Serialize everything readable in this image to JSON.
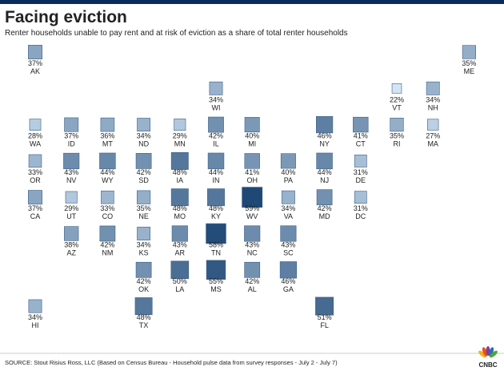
{
  "chart_data": {
    "type": "tilemap",
    "title": "Facing eviction",
    "subtitle": "Renter households unable to pay rent and at risk of eviction as a share of total renter households",
    "source": "SOURCE:   Stout Risius Ross, LLC (Based on Census Bureau - Household pulse data from survey responses - July 2 - July 7)",
    "logo": "CNBC",
    "color_range": [
      "#d3e5f5",
      "#1f4876"
    ],
    "categories": [
      "AK",
      "ME",
      "WI",
      "VT",
      "NH",
      "WA",
      "ID",
      "MT",
      "ND",
      "MN",
      "IL",
      "MI",
      "NY",
      "CT",
      "RI",
      "MA",
      "OR",
      "NV",
      "WY",
      "SD",
      "IA",
      "IN",
      "OH",
      "PA",
      "NJ",
      "DE",
      "CA",
      "UT",
      "CO",
      "NE",
      "MO",
      "KY",
      "WV",
      "VA",
      "MD",
      "DC",
      "AZ",
      "NM",
      "KS",
      "AR",
      "TN",
      "NC",
      "SC",
      "OK",
      "LA",
      "MS",
      "AL",
      "GA",
      "HI",
      "TX",
      "FL"
    ],
    "values": [
      37,
      35,
      34,
      22,
      34,
      28,
      37,
      36,
      34,
      29,
      42,
      40,
      46,
      41,
      35,
      27,
      33,
      43,
      44,
      42,
      48,
      44,
      41,
      40,
      44,
      31,
      37,
      29,
      33,
      35,
      48,
      48,
      59,
      34,
      42,
      31,
      38,
      42,
      34,
      43,
      58,
      43,
      43,
      42,
      50,
      55,
      42,
      46,
      34,
      48,
      51
    ],
    "value_labels": [
      "37%",
      "35%",
      "34%",
      "22%",
      "34%",
      "28%",
      "37%",
      "36%",
      "34%",
      "29%",
      "42%",
      "40%",
      "46%",
      "41%",
      "35%",
      "27%",
      "33%",
      "43%",
      "44%",
      "42%",
      "48%",
      "44%",
      "41%",
      "40%",
      "44%",
      "31%",
      "37%",
      "29%",
      "33%",
      "35%",
      "48%",
      "48%",
      "59%",
      "34%",
      "42%",
      "31%",
      "38%",
      "42%",
      "34%",
      "43%",
      "58%",
      "43%",
      "43%",
      "42%",
      "50%",
      "55%",
      "42%",
      "46%",
      "34%",
      "48%",
      "51%"
    ]
  }
}
